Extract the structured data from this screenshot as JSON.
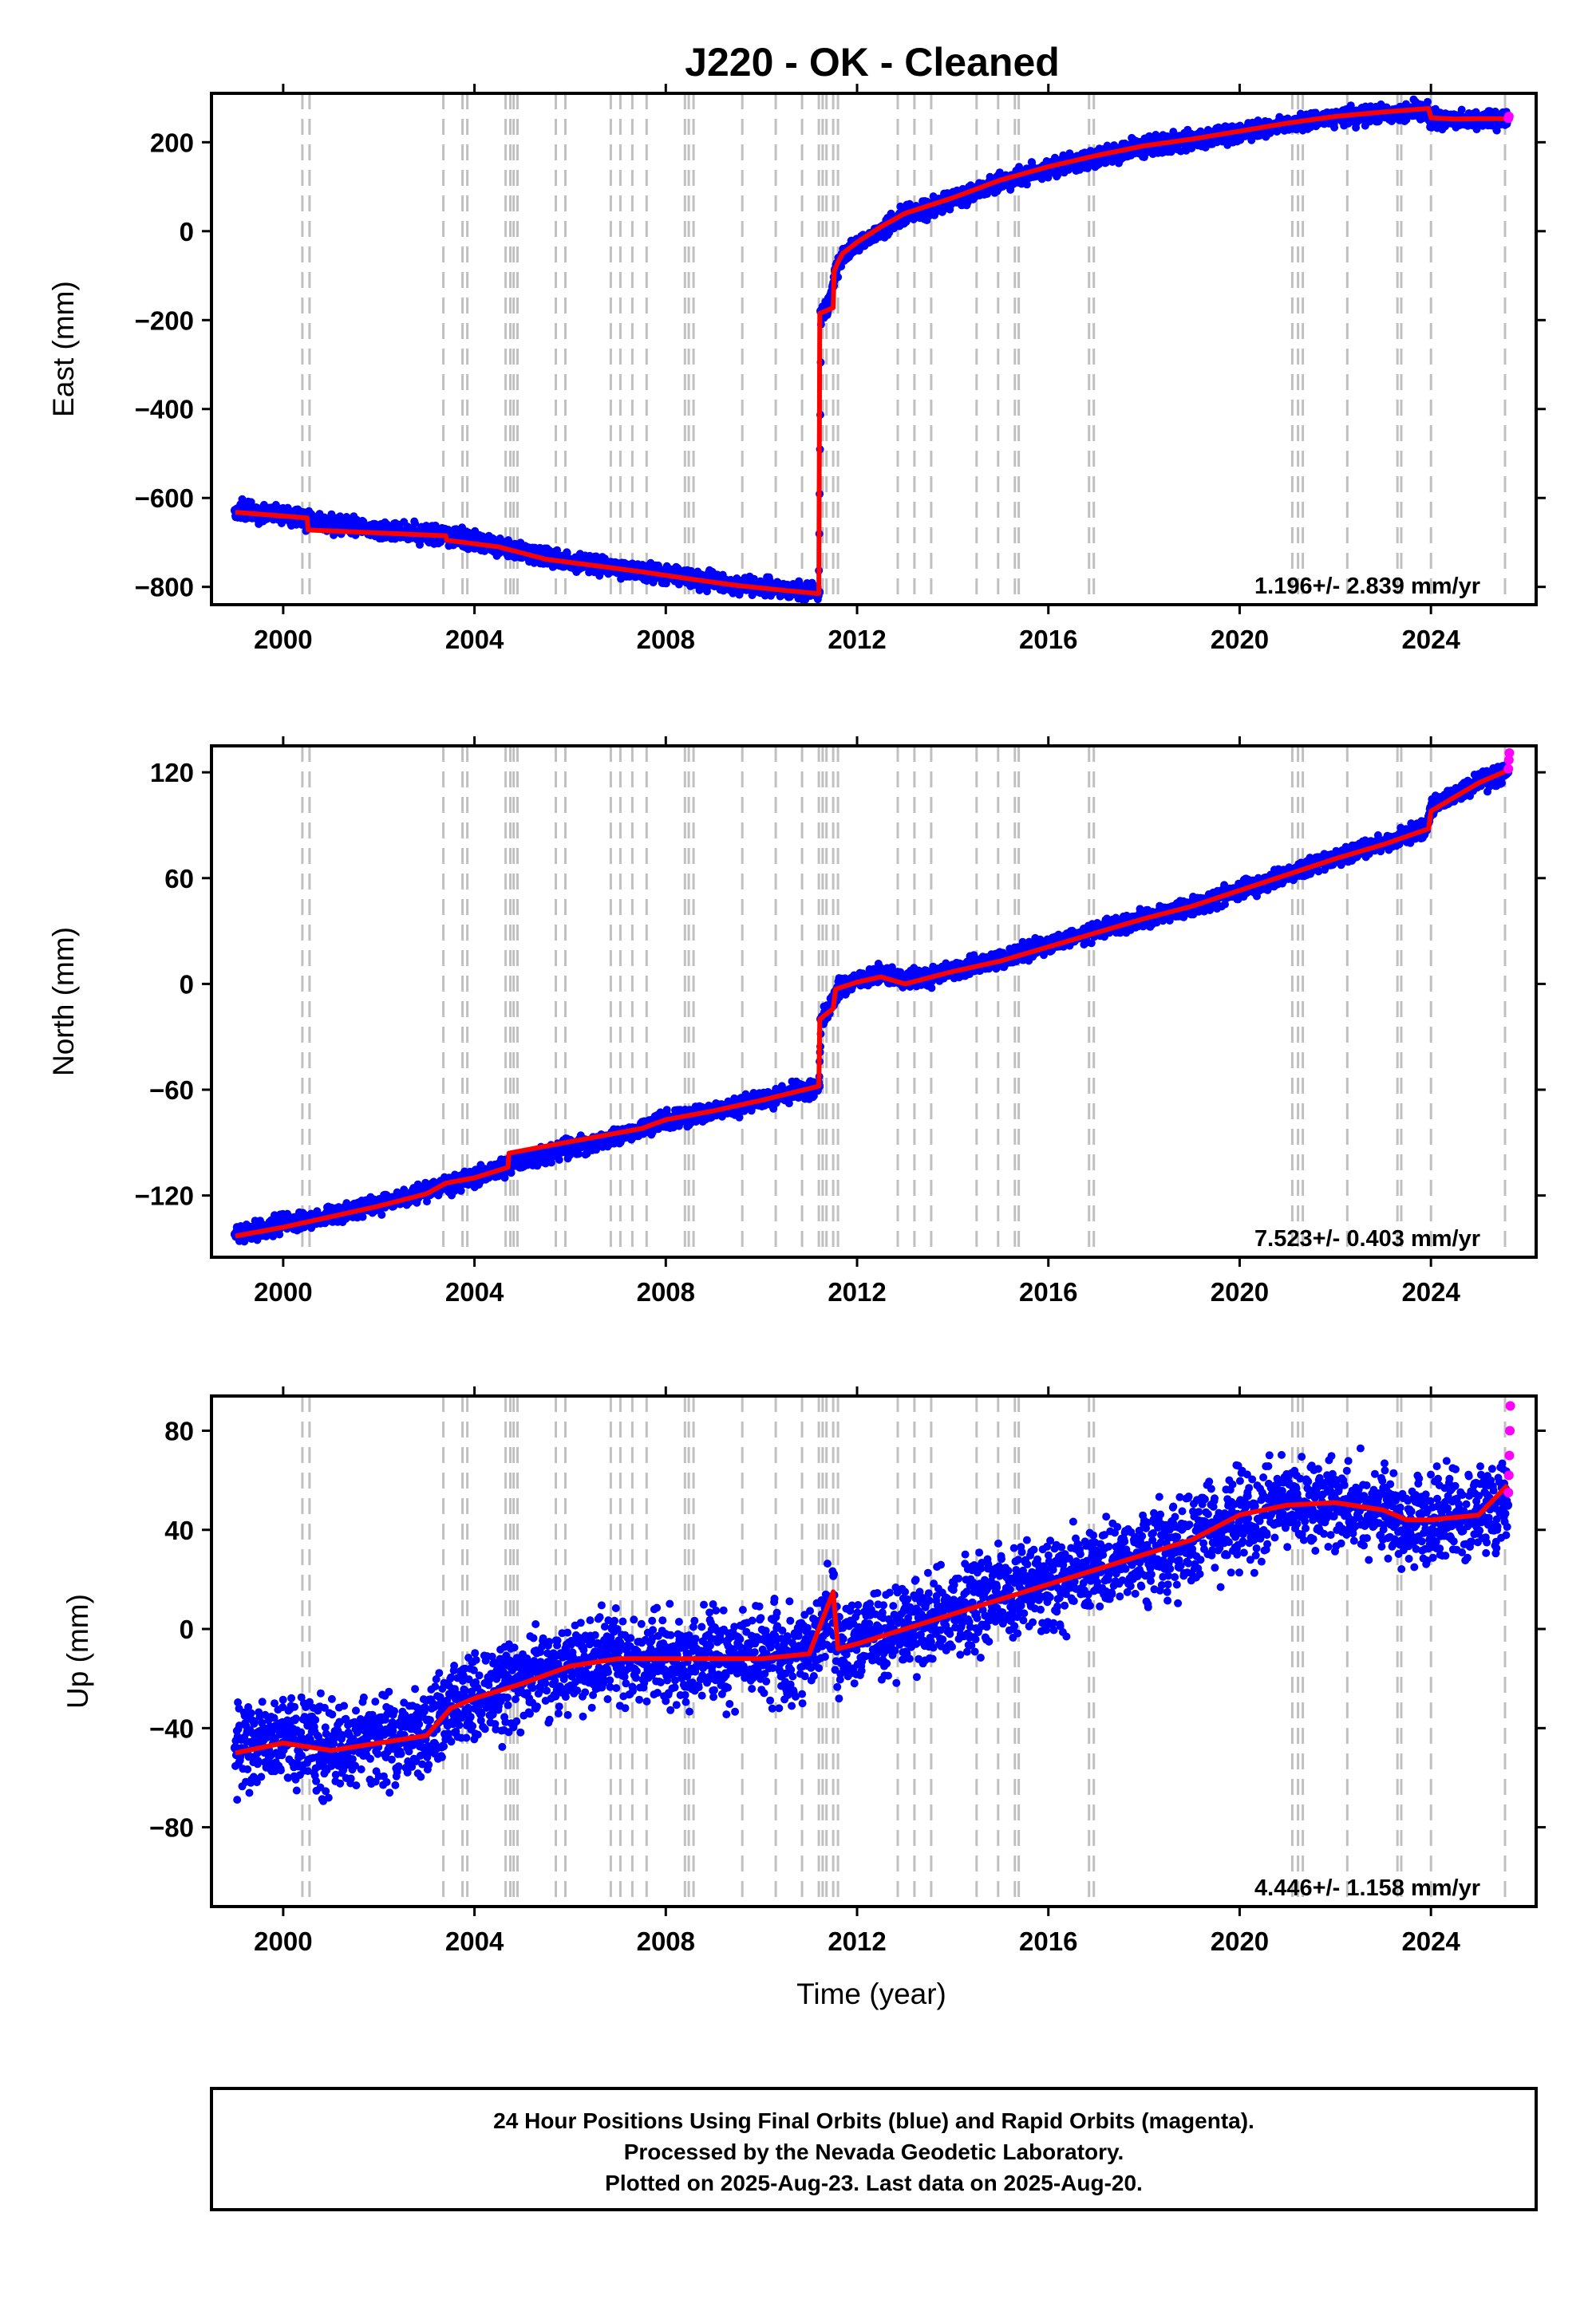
{
  "title": "J220  - OK - Cleaned",
  "xlabel": "Time (year)",
  "footer": [
    "24 Hour Positions Using Final Orbits (blue) and Rapid Orbits (magenta).",
    "Processed by the Nevada Geodetic Laboratory.",
    "Plotted on 2025-Aug-23. Last data on 2025-Aug-20."
  ],
  "colors": {
    "final": "#0000ff",
    "rapid": "#ff00ff",
    "model": "#ff0000",
    "events": "#c0c0c0"
  },
  "chart_data": [
    {
      "type": "scatter",
      "ylabel": "East (mm)",
      "rate_label": "1.196+/- 2.839 mm/yr",
      "xlim": [
        1998.5,
        2026.2
      ],
      "ylim": [
        -840,
        310
      ],
      "xticks": [
        "2000",
        "2004",
        "2008",
        "2012",
        "2016",
        "2020",
        "2024"
      ],
      "yticks": [
        "200",
        "0",
        "−200",
        "−400",
        "−600",
        "−800"
      ],
      "ytick_values": [
        200,
        0,
        -200,
        -400,
        -600,
        -800
      ],
      "series": [
        {
          "role": "final",
          "x": [
            1999.0,
            2000.0,
            2000.5,
            2001.5,
            2002.5,
            2003.4,
            2004.5,
            2005.5,
            2006.5,
            2007.5,
            2008.5,
            2009.5,
            2010.5,
            2011.2,
            2011.25,
            2011.4,
            2011.55,
            2011.7,
            2012.0,
            2012.5,
            2013.0,
            2014.0,
            2015.0,
            2016.0,
            2017.0,
            2018.0,
            2019.0,
            2020.0,
            2021.0,
            2022.0,
            2023.0,
            2023.9,
            2024.0,
            2024.5,
            2025.0,
            2025.6
          ],
          "y": [
            -628,
            -640,
            -650,
            -665,
            -675,
            -685,
            -705,
            -735,
            -750,
            -765,
            -780,
            -795,
            -805,
            -812,
            -180,
            -170,
            -90,
            -55,
            -30,
            0,
            35,
            70,
            110,
            140,
            165,
            190,
            205,
            222,
            240,
            255,
            265,
            275,
            250,
            250,
            252,
            253
          ]
        },
        {
          "role": "rapid",
          "x": [
            2025.62,
            2025.63
          ],
          "y": [
            254,
            258
          ]
        },
        {
          "role": "model",
          "x": [
            1999.0,
            2000.5,
            2000.52,
            2003.4,
            2003.42,
            2004.5,
            2005.5,
            2006.5,
            2007.5,
            2008.5,
            2009.5,
            2010.5,
            2011.2,
            2011.22,
            2011.5,
            2011.52,
            2011.6,
            2011.7,
            2012.0,
            2012.5,
            2013.0,
            2014.0,
            2015.0,
            2016.0,
            2017.0,
            2018.0,
            2019.0,
            2020.0,
            2021.0,
            2022.0,
            2023.0,
            2023.95,
            2024.0,
            2024.5,
            2025.0,
            2025.6
          ],
          "y": [
            -632,
            -645,
            -672,
            -685,
            -695,
            -710,
            -738,
            -752,
            -766,
            -782,
            -797,
            -808,
            -815,
            -185,
            -172,
            -90,
            -70,
            -50,
            -25,
            10,
            40,
            75,
            115,
            145,
            170,
            192,
            207,
            225,
            243,
            258,
            268,
            276,
            255,
            252,
            253,
            253
          ]
        }
      ]
    },
    {
      "type": "scatter",
      "ylabel": "North (mm)",
      "rate_label": "7.523+/- 0.403 mm/yr",
      "xlim": [
        1998.5,
        2026.2
      ],
      "ylim": [
        -155,
        135
      ],
      "xticks": [
        "2000",
        "2004",
        "2008",
        "2012",
        "2016",
        "2020",
        "2024"
      ],
      "yticks": [
        "120",
        "60",
        "0",
        "−60",
        "−120"
      ],
      "ytick_values": [
        120,
        60,
        0,
        -60,
        -120
      ],
      "series": [
        {
          "role": "final",
          "x": [
            1999.0,
            2000.0,
            2001.0,
            2002.0,
            2003.0,
            2004.0,
            2005.0,
            2006.0,
            2007.0,
            2008.0,
            2009.0,
            2010.0,
            2011.2,
            2011.25,
            2011.5,
            2011.6,
            2012.0,
            2012.5,
            2013.0,
            2013.5,
            2014.0,
            2015.0,
            2016.0,
            2017.0,
            2018.0,
            2019.0,
            2020.0,
            2021.0,
            2022.0,
            2023.0,
            2023.9,
            2024.0,
            2024.5,
            2025.0,
            2025.6
          ],
          "y": [
            -142,
            -136,
            -131,
            -125,
            -118,
            -110,
            -100,
            -93,
            -87,
            -77,
            -72,
            -66,
            -58,
            -20,
            -12,
            -2,
            2,
            6,
            3,
            3,
            8,
            14,
            22,
            30,
            37,
            44,
            53,
            62,
            71,
            80,
            88,
            100,
            106,
            114,
            120
          ]
        },
        {
          "role": "rapid",
          "x": [
            2025.62,
            2025.63,
            2025.64
          ],
          "y": [
            122,
            127,
            131
          ]
        },
        {
          "role": "model",
          "x": [
            1999.0,
            2000.0,
            2001.0,
            2002.0,
            2003.0,
            2003.4,
            2004.0,
            2004.7,
            2004.72,
            2005.5,
            2006.5,
            2007.5,
            2008.0,
            2009.0,
            2010.0,
            2011.2,
            2011.22,
            2011.5,
            2011.55,
            2012.0,
            2012.5,
            2013.0,
            2014.0,
            2015.0,
            2016.0,
            2017.0,
            2018.0,
            2019.0,
            2020.0,
            2021.0,
            2022.0,
            2023.0,
            2023.95,
            2024.0,
            2024.5,
            2025.0,
            2025.6
          ],
          "y": [
            -143,
            -138,
            -132,
            -126,
            -119,
            -113,
            -110,
            -104,
            -96,
            -92,
            -87,
            -82,
            -77,
            -72,
            -66,
            -58,
            -20,
            -14,
            -3,
            1,
            4,
            0,
            7,
            13,
            21,
            29,
            37,
            44,
            53,
            62,
            71,
            79,
            88,
            98,
            106,
            114,
            121
          ]
        }
      ]
    },
    {
      "type": "scatter",
      "ylabel": "Up (mm)",
      "rate_label": "4.446+/- 1.158 mm/yr",
      "xlim": [
        1998.5,
        2026.2
      ],
      "ylim": [
        -112,
        94
      ],
      "xticks": [
        "2000",
        "2004",
        "2008",
        "2012",
        "2016",
        "2020",
        "2024"
      ],
      "yticks": [
        "80",
        "40",
        "0",
        "−40",
        "−80"
      ],
      "ytick_values": [
        80,
        40,
        0,
        -40,
        -80
      ],
      "series": [
        {
          "role": "final",
          "x": [
            1999.0,
            2000.0,
            2001.0,
            2002.0,
            2003.0,
            2003.5,
            2004.0,
            2005.0,
            2006.0,
            2007.0,
            2008.0,
            2009.0,
            2010.0,
            2011.0,
            2011.5,
            2011.6,
            2012.0,
            2013.0,
            2014.0,
            2015.0,
            2016.0,
            2017.0,
            2018.0,
            2019.0,
            2020.0,
            2021.0,
            2022.0,
            2023.0,
            2023.5,
            2024.0,
            2025.0,
            2025.6
          ],
          "y": [
            -48,
            -46,
            -48,
            -45,
            -42,
            -32,
            -28,
            -22,
            -15,
            -12,
            -12,
            -12,
            -12,
            -10,
            8,
            -8,
            -6,
            0,
            6,
            12,
            18,
            24,
            30,
            36,
            45,
            50,
            50,
            48,
            42,
            44,
            46,
            50
          ]
        },
        {
          "role": "rapid",
          "x": [
            2025.62,
            2025.63,
            2025.64,
            2025.65,
            2025.66
          ],
          "y": [
            55,
            62,
            70,
            80,
            90
          ]
        },
        {
          "role": "model",
          "x": [
            1999.0,
            2000.0,
            2001.0,
            2002.0,
            2003.0,
            2003.5,
            2004.0,
            2005.0,
            2006.0,
            2007.0,
            2008.0,
            2009.0,
            2010.0,
            2011.0,
            2011.5,
            2011.6,
            2012.0,
            2013.0,
            2014.0,
            2015.0,
            2016.0,
            2017.0,
            2018.0,
            2019.0,
            2020.0,
            2021.0,
            2022.0,
            2023.0,
            2023.5,
            2024.0,
            2025.0,
            2025.6
          ],
          "y": [
            -50,
            -46,
            -49,
            -46,
            -43,
            -32,
            -28,
            -22,
            -15,
            -12,
            -12,
            -12,
            -12,
            -10,
            15,
            -8,
            -6,
            0,
            6,
            12,
            18,
            24,
            30,
            36,
            46,
            50,
            51,
            48,
            44,
            44,
            46,
            58
          ]
        }
      ]
    }
  ]
}
